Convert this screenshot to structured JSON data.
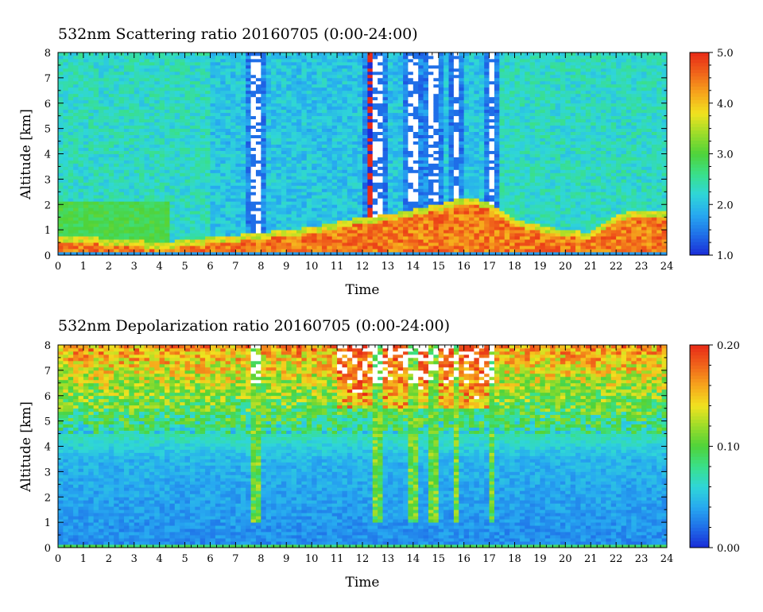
{
  "chart_data": [
    {
      "type": "heatmap",
      "title": "532nm Scattering ratio  20160705 (0:00-24:00)",
      "xlabel": "Time",
      "ylabel": "Altitude [km]",
      "xlim": [
        0,
        24
      ],
      "ylim": [
        0,
        8
      ],
      "x_ticks": [
        "0",
        "1",
        "2",
        "3",
        "4",
        "5",
        "6",
        "7",
        "8",
        "9",
        "10",
        "11",
        "12",
        "13",
        "14",
        "15",
        "16",
        "17",
        "18",
        "19",
        "20",
        "21",
        "22",
        "23",
        "24"
      ],
      "y_ticks": [
        "0",
        "1",
        "2",
        "3",
        "4",
        "5",
        "6",
        "7",
        "8"
      ],
      "colorbar": {
        "min": 1.0,
        "max": 5.0,
        "ticks": [
          "1.0",
          "2.0",
          "3.0",
          "4.0",
          "5.0"
        ]
      },
      "features": {
        "background_level": 2.3,
        "aerosol_layer_top_km": [
          0.8,
          0.8,
          0.6,
          0.6,
          0.5,
          0.6,
          0.7,
          0.8,
          0.9,
          1.0,
          1.1,
          1.3,
          1.5,
          1.6,
          1.8,
          2.0,
          2.3,
          2.1,
          1.4,
          1.2,
          1.0,
          0.9,
          1.6,
          1.8,
          1.7
        ],
        "cloud_columns_hours": [
          7.8,
          12.3,
          12.6,
          14.0,
          14.8,
          15.7,
          17.1
        ],
        "saturated_color": "#ffffff"
      }
    },
    {
      "type": "heatmap",
      "title": "532nm Depolarization ratio  20160705 (0:00-24:00)",
      "xlabel": "Time",
      "ylabel": "Altitude [km]",
      "xlim": [
        0,
        24
      ],
      "ylim": [
        0,
        8
      ],
      "x_ticks": [
        "0",
        "1",
        "2",
        "3",
        "4",
        "5",
        "6",
        "7",
        "8",
        "9",
        "10",
        "11",
        "12",
        "13",
        "14",
        "15",
        "16",
        "17",
        "18",
        "19",
        "20",
        "21",
        "22",
        "23",
        "24"
      ],
      "y_ticks": [
        "0",
        "1",
        "2",
        "3",
        "4",
        "5",
        "6",
        "7",
        "8"
      ],
      "colorbar": {
        "min": 0.0,
        "max": 0.2,
        "ticks": [
          "0.00",
          "0.10",
          "0.20"
        ]
      },
      "features": {
        "low_level_value": 0.03,
        "upper_level_value": 0.15,
        "cloud_columns_hours": [
          7.8,
          12.6,
          14.0,
          14.8,
          15.7,
          17.1
        ],
        "saturated_color": "#ffffff"
      }
    }
  ],
  "colormap": [
    "#1a2bd6",
    "#1f6ee8",
    "#27a9f0",
    "#2fd6d8",
    "#39e08a",
    "#4fd33a",
    "#9bdc2a",
    "#f1e21f",
    "#f6a51c",
    "#f0641a",
    "#e82a17"
  ]
}
